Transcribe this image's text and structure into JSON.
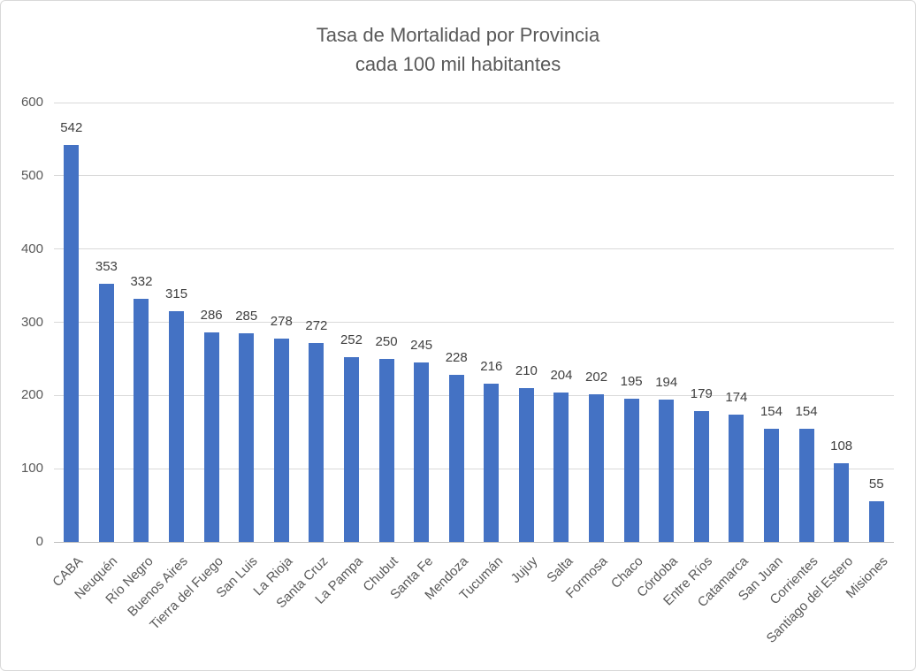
{
  "chart": {
    "title_line1": "Tasa de Mortalidad por Provincia",
    "title_line2": "cada 100 mil habitantes"
  },
  "chart_data": {
    "type": "bar",
    "title": "Tasa de Mortalidad por Provincia cada 100 mil habitantes",
    "xlabel": "",
    "ylabel": "",
    "categories": [
      "CABA",
      "Neuquén",
      "Río Negro",
      "Buenos Aires",
      "Tierra del Fuego",
      "San Luis",
      "La Rioja",
      "Santa Cruz",
      "La Pampa",
      "Chubut",
      "Santa Fe",
      "Mendoza",
      "Tucumán",
      "Jujuy",
      "Salta",
      "Formosa",
      "Chaco",
      "Córdoba",
      "Entre Ríos",
      "Catamarca",
      "San Juan",
      "Corrientes",
      "Santiago del Estero",
      "Misiones"
    ],
    "values": [
      542,
      353,
      332,
      315,
      286,
      285,
      278,
      272,
      252,
      250,
      245,
      228,
      216,
      210,
      204,
      202,
      195,
      194,
      179,
      174,
      154,
      154,
      108,
      55
    ],
    "ylim": [
      0,
      600
    ],
    "yticks": [
      0,
      100,
      200,
      300,
      400,
      500,
      600
    ],
    "grid": true,
    "legend": false,
    "data_labels": true,
    "bar_color": "#4472C4",
    "gridline_color": "#D9D9D9",
    "text_color": "#595959",
    "x_label_rotation_deg": 45
  }
}
